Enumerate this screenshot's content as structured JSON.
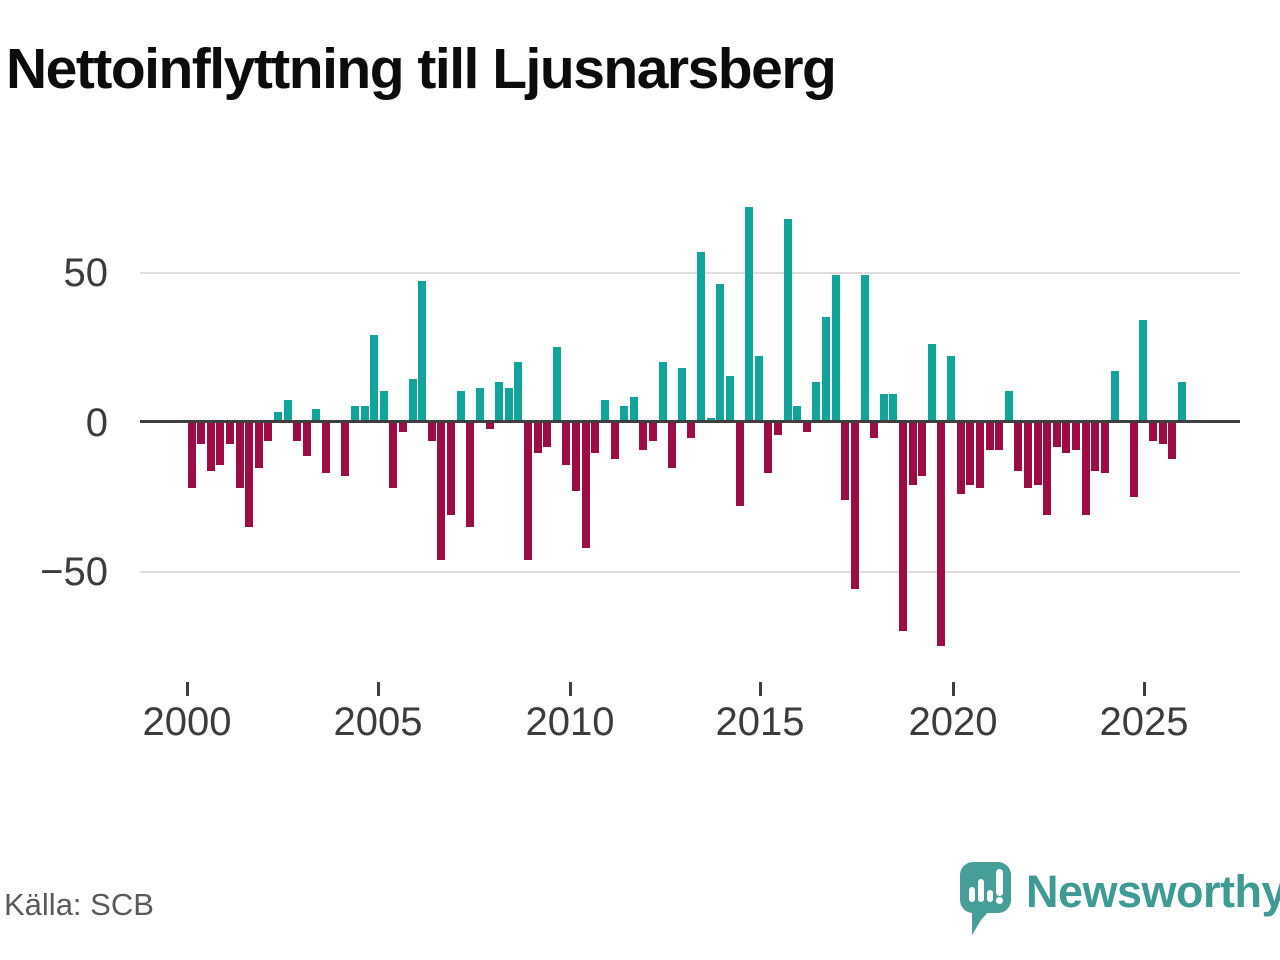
{
  "title": "Nettoinflyttning till Ljusnarsberg",
  "source": "Källa: SCB",
  "brand": {
    "name": "Newsworthy",
    "icon": "speech-bubble-bar-chart-icon",
    "icon_color": "#459e98",
    "text_color": "#3d9b94"
  },
  "chart_data": {
    "type": "bar",
    "title": "Nettoinflyttning till Ljusnarsberg",
    "frequency": "quarterly",
    "start_year": 2000,
    "end_year": 2025,
    "values": [
      -22,
      -7,
      -16,
      -14,
      -7,
      -22,
      -35,
      -15,
      -6,
      3,
      7,
      -6,
      -11,
      4,
      -17,
      0,
      -18,
      5,
      5,
      29,
      10,
      -22,
      -3,
      14,
      47,
      -6,
      -46,
      -31,
      10,
      -35,
      11,
      -2,
      13,
      11,
      20,
      -46,
      -10,
      -8,
      25,
      -14,
      -23,
      -42,
      -10,
      7,
      -12,
      5,
      8,
      -9,
      -6,
      20,
      -15,
      18,
      -5,
      57,
      1,
      46,
      15,
      -28,
      72,
      22,
      -17,
      -4,
      68,
      5,
      -3,
      13,
      35,
      49,
      -26,
      -56,
      49,
      -5,
      9,
      9,
      -70,
      -21,
      -18,
      26,
      -75,
      22,
      -24,
      -21,
      -22,
      -9,
      -9,
      10,
      -16,
      -22,
      -21,
      -31,
      -8,
      -10,
      -9,
      -31,
      -16,
      -17,
      17,
      0,
      -25,
      34,
      -6,
      -7,
      -12,
      13
    ],
    "xticks": [
      "2000",
      "2005",
      "2010",
      "2015",
      "2020",
      "2025"
    ],
    "yticks": [
      "50",
      "0",
      "−50"
    ],
    "ytick_values": [
      50,
      0,
      -50
    ],
    "ylim": [
      -80,
      80
    ],
    "grid": true,
    "legend": "none",
    "positive_color": "#10a49b",
    "negative_color": "#9e0c45"
  }
}
